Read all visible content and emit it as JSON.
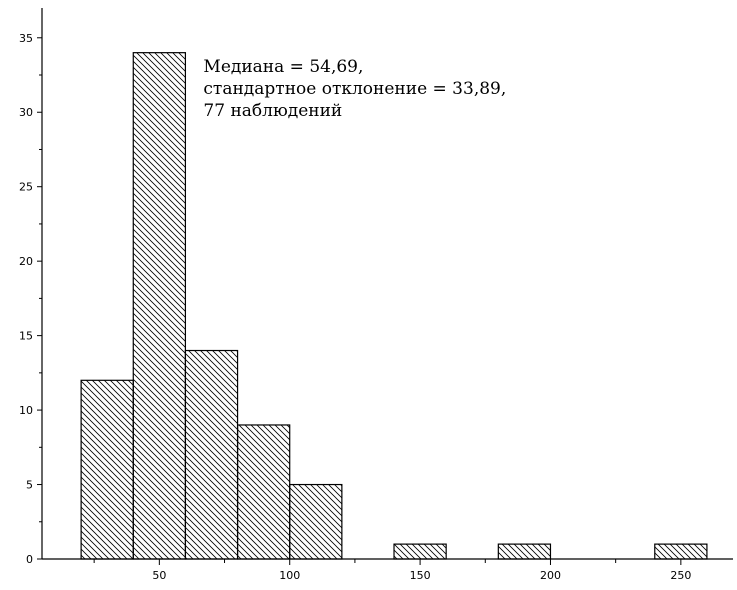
{
  "chart_data": {
    "type": "bar",
    "histogram": true,
    "bin_width": 20,
    "bins": [
      {
        "start": 20,
        "end": 40,
        "value": 12
      },
      {
        "start": 40,
        "end": 60,
        "value": 34
      },
      {
        "start": 60,
        "end": 80,
        "value": 14
      },
      {
        "start": 80,
        "end": 100,
        "value": 9
      },
      {
        "start": 100,
        "end": 120,
        "value": 5
      },
      {
        "start": 140,
        "end": 160,
        "value": 1
      },
      {
        "start": 180,
        "end": 200,
        "value": 1
      },
      {
        "start": 240,
        "end": 260,
        "value": 1
      }
    ],
    "title": "",
    "xlabel": "",
    "ylabel": "",
    "xlim": [
      5,
      270
    ],
    "ylim": [
      0,
      37
    ],
    "x_ticks": [
      "50",
      "100",
      "150",
      "200",
      "250"
    ],
    "x_tick_values": [
      50,
      100,
      150,
      200,
      250
    ],
    "y_ticks": [
      "0",
      "5",
      "10",
      "15",
      "20",
      "25",
      "30",
      "35"
    ],
    "y_tick_values": [
      0,
      5,
      10,
      15,
      20,
      25,
      30,
      35
    ],
    "bar_fill": "diagonal-hatch",
    "bar_color": "#000000",
    "grid": false,
    "annotation": [
      "Медиана = 54,69,",
      "стандартное отклонение = 33,89,",
      "77 наблюдений"
    ]
  }
}
